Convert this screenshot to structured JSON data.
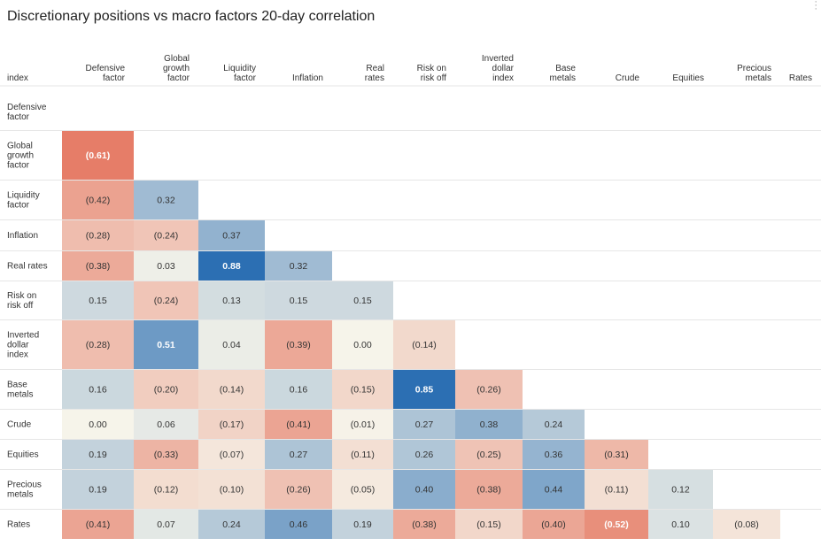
{
  "title": "Discretionary positions vs macro factors 20-day correlation",
  "menu_icon": "more-options-icon",
  "chart_data": {
    "type": "heatmap",
    "title": "Discretionary positions vs macro factors 20-day correlation",
    "index_label": "index",
    "columns": [
      [
        "Defensive",
        "factor"
      ],
      [
        "Global",
        "growth",
        "factor"
      ],
      [
        "Liquidity",
        "factor"
      ],
      [
        "Inflation"
      ],
      [
        "Real",
        "rates"
      ],
      [
        "Risk on",
        "risk off"
      ],
      [
        "Inverted",
        "dollar",
        "index"
      ],
      [
        "Base",
        "metals"
      ],
      [
        "Crude"
      ],
      [
        "Equities"
      ],
      [
        "Precious",
        "metals"
      ],
      [
        "Rates"
      ]
    ],
    "rows": [
      [
        "Defensive",
        "factor"
      ],
      [
        "Global",
        "growth",
        "factor"
      ],
      [
        "Liquidity",
        "factor"
      ],
      [
        "Inflation"
      ],
      [
        "Real rates"
      ],
      [
        "Risk on",
        "risk off"
      ],
      [
        "Inverted",
        "dollar",
        "index"
      ],
      [
        "Base",
        "metals"
      ],
      [
        "Crude"
      ],
      [
        "Equities"
      ],
      [
        "Precious",
        "metals"
      ],
      [
        "Rates"
      ]
    ],
    "values": [
      [],
      [
        -0.61
      ],
      [
        -0.42,
        0.32
      ],
      [
        -0.28,
        -0.24,
        0.37
      ],
      [
        -0.38,
        0.03,
        0.88,
        0.32
      ],
      [
        0.15,
        -0.24,
        0.13,
        0.15,
        0.15
      ],
      [
        -0.28,
        0.51,
        0.04,
        -0.39,
        0.0,
        -0.14
      ],
      [
        0.16,
        -0.2,
        -0.14,
        0.16,
        -0.15,
        0.85,
        -0.26
      ],
      [
        0.0,
        0.06,
        -0.17,
        -0.41,
        -0.01,
        0.27,
        0.38,
        0.24
      ],
      [
        0.19,
        -0.33,
        -0.07,
        0.27,
        -0.11,
        0.26,
        -0.25,
        0.36,
        -0.31
      ],
      [
        0.19,
        -0.12,
        -0.1,
        -0.26,
        -0.05,
        0.4,
        -0.38,
        0.44,
        -0.11,
        0.12
      ],
      [
        -0.41,
        0.07,
        0.24,
        0.46,
        0.19,
        -0.38,
        -0.15,
        -0.4,
        -0.52,
        0.1,
        -0.08
      ]
    ],
    "number_format": "negatives in parentheses, 2 decimals",
    "colors": {
      "negative": "#e2624a",
      "neutral": "#f6f4ea",
      "positive": "#2c6fb3"
    }
  }
}
